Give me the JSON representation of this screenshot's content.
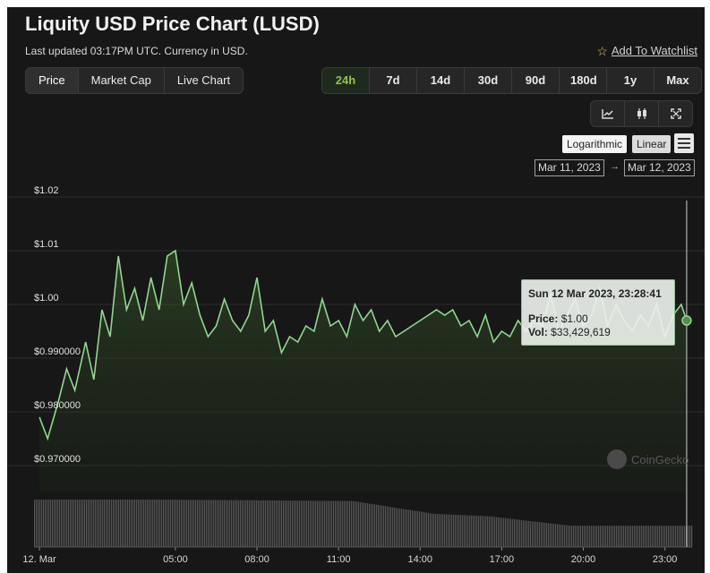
{
  "header": {
    "title": "Liquity USD Price Chart (LUSD)",
    "updated": "Last updated 03:17PM UTC. Currency in USD.",
    "watchlist": "Add To Watchlist"
  },
  "view_tabs": [
    "Price",
    "Market Cap",
    "Live Chart"
  ],
  "active_view": "Price",
  "range_tabs": [
    "24h",
    "7d",
    "14d",
    "30d",
    "90d",
    "180d",
    "1y",
    "Max"
  ],
  "active_range": "24h",
  "tools": [
    "line-chart-icon",
    "candlestick-icon",
    "expand-icon"
  ],
  "scale": {
    "log": "Logarithmic",
    "linear": "Linear",
    "active": "Linear"
  },
  "date_range": {
    "from": "Mar 11, 2023",
    "to": "Mar 12, 2023",
    "arrow": "→"
  },
  "tooltip": {
    "title": "Sun 12 Mar 2023, 23:28:41",
    "price_label": "Price:",
    "price_value": "$1.00",
    "vol_label": "Vol:",
    "vol_value": "$33,429,619"
  },
  "watermark": "CoinGecko",
  "colors": {
    "line": "#8fd88f",
    "background": "#171717",
    "accent": "#8dc63f",
    "volume": "#5a5a5a"
  },
  "chart_data": {
    "type": "line",
    "title": "Liquity USD Price Chart (LUSD)",
    "ylim": [
      0.965,
      1.02
    ],
    "yticks": [
      1.02,
      1.01,
      1.0,
      0.99,
      0.98,
      0.97
    ],
    "ytick_labels": [
      "$1.02",
      "$1.01",
      "$1.00",
      "$0.990000",
      "$0.980000",
      "$0.970000"
    ],
    "xlim": [
      -0.2,
      24.0
    ],
    "xticks": [
      0,
      5,
      8,
      11,
      14,
      17,
      20,
      23
    ],
    "xtick_labels": [
      "12. Mar",
      "05:00",
      "08:00",
      "11:00",
      "14:00",
      "17:00",
      "20:00",
      "23:00"
    ],
    "series": [
      {
        "x": [
          0,
          0.3,
          0.7,
          1.0,
          1.3,
          1.7,
          2.0,
          2.3,
          2.6,
          2.9,
          3.2,
          3.5,
          3.8,
          4.1,
          4.4,
          4.7,
          5.0,
          5.3,
          5.6,
          5.9,
          6.2,
          6.5,
          6.8,
          7.1,
          7.4,
          7.7,
          8.0,
          8.3,
          8.6,
          8.9,
          9.2,
          9.5,
          9.8,
          10.1,
          10.4,
          10.7,
          11.0,
          11.3,
          11.6,
          11.9,
          12.2,
          12.5,
          12.8,
          13.1,
          13.4,
          13.7,
          14.0,
          14.3,
          14.6,
          14.9,
          15.2,
          15.5,
          15.8,
          16.1,
          16.4,
          16.7,
          17.0,
          17.3,
          17.6,
          17.9,
          18.2,
          18.5,
          18.8,
          19.1,
          19.4,
          19.7,
          20.0,
          20.3,
          20.6,
          20.9,
          21.2,
          21.5,
          21.8,
          22.1,
          22.4,
          22.7,
          23.0,
          23.3,
          23.6,
          23.8
        ],
        "y": [
          0.979,
          0.975,
          0.982,
          0.988,
          0.984,
          0.993,
          0.986,
          0.999,
          0.994,
          1.009,
          0.999,
          1.003,
          0.997,
          1.005,
          0.999,
          1.009,
          1.01,
          1.0,
          1.004,
          0.998,
          0.994,
          0.996,
          1.001,
          0.997,
          0.995,
          0.998,
          1.005,
          0.995,
          0.997,
          0.991,
          0.994,
          0.993,
          0.996,
          0.995,
          1.001,
          0.996,
          0.997,
          0.994,
          1.0,
          0.997,
          0.999,
          0.995,
          0.997,
          0.994,
          0.995,
          0.996,
          0.997,
          0.998,
          0.999,
          0.998,
          0.999,
          0.996,
          0.997,
          0.994,
          0.998,
          0.993,
          0.995,
          0.994,
          0.997,
          0.995,
          0.997,
          0.996,
          1.002,
          0.995,
          0.998,
          1.001,
          0.996,
          0.998,
          1.003,
          0.996,
          1.0,
          0.997,
          0.995,
          0.998,
          0.996,
          1.0,
          0.994,
          0.998,
          1.0,
          0.997
        ]
      }
    ],
    "volume": {
      "x_breaks": [
        0,
        4.5,
        11.5,
        14.5,
        16.5,
        18.0,
        19.5,
        24.0
      ],
      "relative_height": [
        1.0,
        1.0,
        0.97,
        0.7,
        0.65,
        0.55,
        0.45,
        0.45
      ]
    }
  }
}
